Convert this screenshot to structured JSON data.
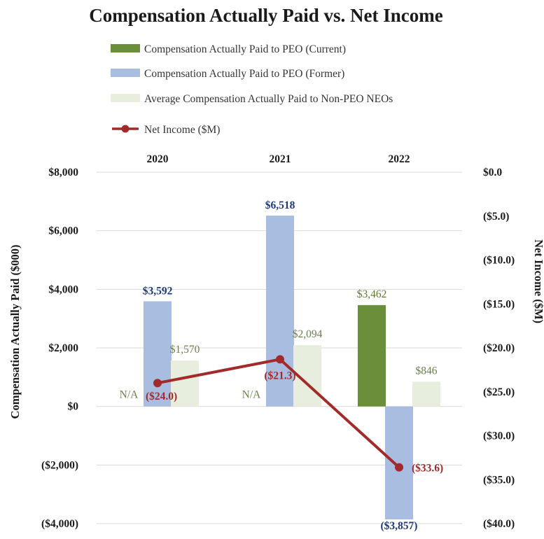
{
  "chart_data": {
    "type": "bar",
    "title": "Compensation Actually Paid vs. Net Income",
    "categories": [
      "2020",
      "2021",
      "2022"
    ],
    "ylabel": "Compensation Actually Paid ($000)",
    "y2label": "Net Income ($M)",
    "ylim": [
      -4000,
      8000
    ],
    "y2lim": [
      -40,
      0
    ],
    "yticks": [
      "$8,000",
      "$6,000",
      "$4,000",
      "$2,000",
      "$0",
      "($2,000)",
      "($4,000)"
    ],
    "y2ticks": [
      "$0.0",
      "($5.0)",
      "($10.0)",
      "($15.0)",
      "($20.0)",
      "($25.0)",
      "($30.0)",
      "($35.0)",
      "($40.0)"
    ],
    "legend_position": "top",
    "grid": "horizontal",
    "colors": {
      "current": "#6b8e3a",
      "former": "#a9bde0",
      "neo": "#e8eedd",
      "net": "#a32a2a",
      "former_label": "#1f3a7a",
      "green_label": "#5a7a2a",
      "neo_label": "#6a7f4a",
      "grid": "#d9d9d9"
    },
    "series": [
      {
        "name": "Compensation Actually Paid to PEO (Current)",
        "type": "bar",
        "values": [
          null,
          null,
          3462
        ],
        "labels": [
          "N/A",
          "N/A",
          "$3,462"
        ]
      },
      {
        "name": "Compensation Actually Paid to PEO (Former)",
        "type": "bar",
        "values": [
          3592,
          6518,
          -3857
        ],
        "labels": [
          "$3,592",
          "$6,518",
          "($3,857)"
        ]
      },
      {
        "name": "Average Compensation Actually Paid to Non-PEO NEOs",
        "type": "bar",
        "values": [
          1570,
          2094,
          846
        ],
        "labels": [
          "$1,570",
          "$2,094",
          "$846"
        ]
      },
      {
        "name": "Net Income ($M)",
        "type": "line",
        "axis": "secondary",
        "values": [
          -24.0,
          -21.3,
          -33.6
        ],
        "labels": [
          "($24.0)",
          "($21.3)",
          "($33.6)"
        ]
      }
    ]
  }
}
